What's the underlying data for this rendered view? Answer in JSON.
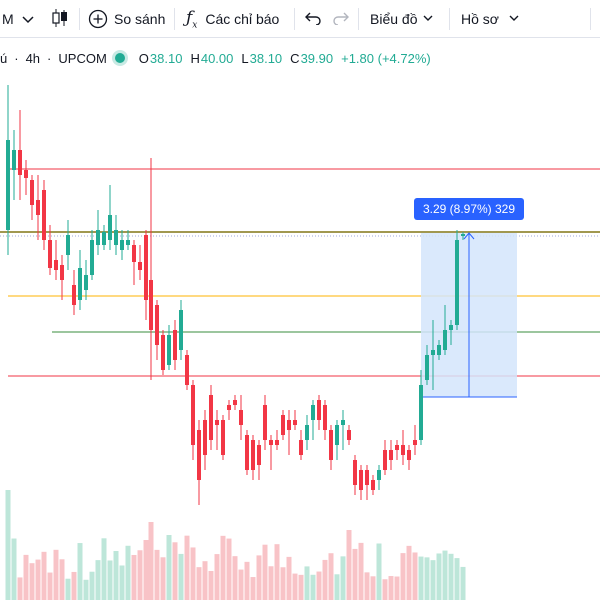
{
  "toolbar": {
    "symbol_fragment": "M",
    "compare_label": "So sánh",
    "indicators_label": "Các chỉ báo",
    "chart_type_label": "Biểu đồ",
    "profile_label": "Hồ sơ"
  },
  "legend": {
    "symbol_fragment": "ú",
    "interval": "4h",
    "exchange": "UPCOM",
    "o_label": "O",
    "o_value": "38.10",
    "h_label": "H",
    "h_value": "40.00",
    "l_label": "L",
    "l_value": "38.10",
    "c_label": "C",
    "c_value": "39.90",
    "change": "+1.80 (+4.72%)"
  },
  "measure": {
    "label": "3.29 (8.97%) 329"
  },
  "colors": {
    "up": "#22ab94",
    "down": "#f23645",
    "up_volume": "#bde6d9",
    "down_volume": "#f8c3c7",
    "line_red": "#f23645",
    "line_orange": "#ffb300",
    "line_green": "#388e3c",
    "line_olive": "#827717",
    "measure_fill": "#d3e5fb",
    "measure_border": "#2962ff"
  },
  "icons": [
    "chevron-down-icon",
    "candles-icon",
    "plus-circle-icon",
    "fx-icon",
    "undo-icon",
    "redo-icon"
  ]
}
